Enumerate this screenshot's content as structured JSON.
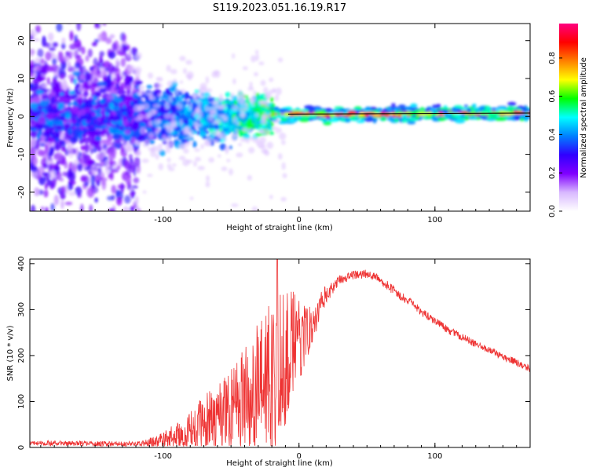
{
  "title": "S119.2023.051.16.19.R17",
  "chart_data": [
    {
      "type": "heatmap",
      "name": "spectrogram",
      "xlabel": "Height of straight line (km)",
      "ylabel": "Frequency (Hz)",
      "xlim": [
        -198,
        170
      ],
      "ylim": [
        -25,
        24.5
      ],
      "xticks": [
        -100,
        0,
        100
      ],
      "xtick_labels": [
        "-100",
        "0",
        "100"
      ],
      "yticks": [
        -20,
        -10,
        0,
        10,
        20
      ],
      "ytick_labels": [
        "-20",
        "-10",
        "0",
        "10",
        "20"
      ],
      "fit_line": {
        "x": [
          -8,
          170
        ],
        "y": [
          0.6,
          0.9
        ]
      },
      "colorbar": {
        "label": "Normalized spectral amplitude",
        "range": [
          0.0,
          0.98
        ],
        "ticks": [
          0.0,
          0.2,
          0.4,
          0.6,
          0.8
        ],
        "tick_labels": [
          "0.0",
          "0.2",
          "0.4",
          "0.6",
          "0.8"
        ],
        "colormap": [
          "#ffffff",
          "#d8b8ff",
          "#8000ff",
          "#3000ff",
          "#0080ff",
          "#00ffff",
          "#00ff00",
          "#ffff00",
          "#ff8000",
          "#ff0000",
          "#ff0080"
        ]
      },
      "description_segments": [
        {
          "x_range": [
            -198,
            -120
          ],
          "freq_center": 0,
          "noise_spread_hz": 24,
          "peak_amplitude": 0.25
        },
        {
          "x_range": [
            -120,
            -20
          ],
          "freq_center": 0,
          "noise_spread_hz": 6,
          "peak_amplitude": 0.45
        },
        {
          "x_range": [
            -20,
            170
          ],
          "freq_center": 0.7,
          "noise_spread_hz": 1,
          "peak_amplitude": 0.9
        }
      ]
    },
    {
      "type": "line",
      "name": "snr",
      "xlabel": "Height of straight line (km)",
      "ylabel": "SNR (10 * v/v)",
      "xlim": [
        -198,
        170
      ],
      "ylim": [
        0,
        410
      ],
      "xticks": [
        -100,
        0,
        100
      ],
      "xtick_labels": [
        "-100",
        "0",
        "100"
      ],
      "yticks": [
        0,
        100,
        200,
        300,
        400
      ],
      "ytick_labels": [
        "0",
        "100",
        "200",
        "300",
        "400"
      ],
      "color": "#ee3333",
      "series": [
        {
          "name": "SNR",
          "x": [
            -198,
            -180,
            -160,
            -140,
            -120,
            -110,
            -100,
            -90,
            -80,
            -70,
            -60,
            -50,
            -40,
            -30,
            -20,
            -15,
            -10,
            -5,
            0,
            10,
            20,
            30,
            40,
            50,
            60,
            70,
            80,
            90,
            100,
            110,
            120,
            130,
            140,
            150,
            160,
            170
          ],
          "y": [
            10,
            9,
            9,
            8,
            8,
            10,
            15,
            25,
            35,
            50,
            70,
            90,
            110,
            130,
            150,
            180,
            200,
            215,
            230,
            270,
            330,
            365,
            375,
            378,
            365,
            340,
            320,
            295,
            275,
            255,
            240,
            225,
            212,
            198,
            185,
            172
          ],
          "noise": [
            8,
            8,
            8,
            8,
            8,
            12,
            20,
            30,
            45,
            60,
            80,
            100,
            120,
            140,
            170,
            170,
            160,
            130,
            90,
            40,
            25,
            15,
            14,
            14,
            14,
            14,
            14,
            13,
            12,
            12,
            12,
            11,
            11,
            11,
            11,
            11
          ]
        }
      ],
      "annotations": [
        {
          "x": -16,
          "y": 410,
          "text": ""
        }
      ]
    }
  ]
}
